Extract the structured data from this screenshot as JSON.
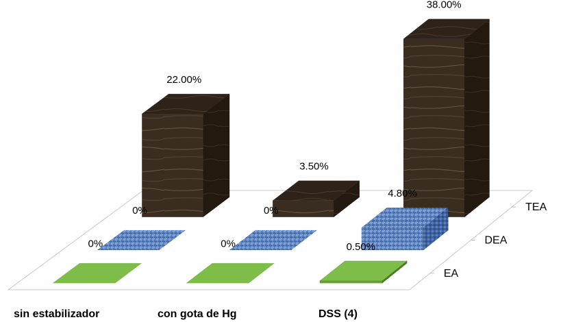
{
  "chart_data": {
    "type": "bar",
    "variant": "3d-grouped-depth",
    "categories": [
      "sin estabilizador",
      "con gota de Hg",
      "DSS (4)"
    ],
    "series": [
      {
        "name": "EA",
        "values": [
          0,
          0,
          0.5
        ],
        "labels": [
          "0%",
          "0%",
          "0.50%"
        ],
        "color": "#6aa23a"
      },
      {
        "name": "DEA",
        "values": [
          0,
          0,
          4.8
        ],
        "labels": [
          "0%",
          "0%",
          "4.80%"
        ],
        "color": "#5f86c3"
      },
      {
        "name": "TEA",
        "values": [
          22,
          3.5,
          38
        ],
        "labels": [
          "22.00%",
          "3.50%",
          "38.00%"
        ],
        "color": "#3d2e22"
      }
    ],
    "unit": "%",
    "ylim": [
      0,
      38
    ],
    "grid": false,
    "legend": "none"
  }
}
